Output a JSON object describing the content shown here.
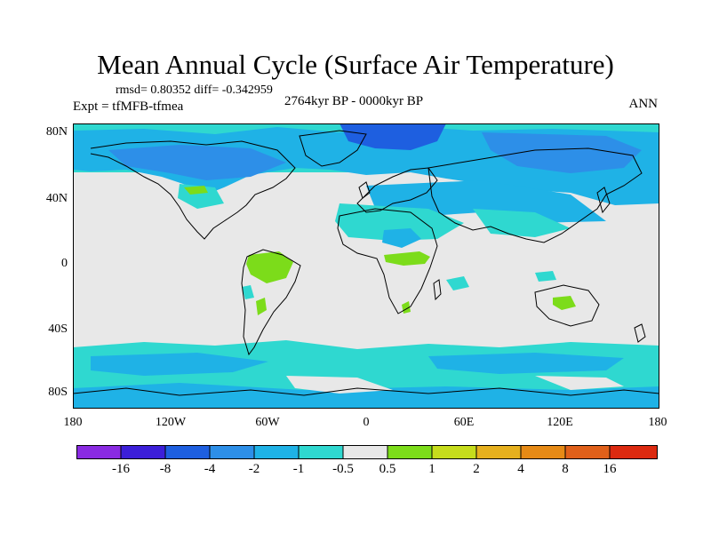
{
  "title": "Mean Annual Cycle (Surface Air Temperature)",
  "stats_line": "rmsd= 0.80352 diff= -0.342959",
  "experiment": "Expt = tfMFB-tfmea",
  "period": "2764kyr BP - 0000kyr BP",
  "season": "ANN",
  "lat_labels": [
    "80N",
    "40N",
    "0",
    "40S",
    "80S"
  ],
  "lon_labels": [
    "180",
    "120W",
    "60W",
    "0",
    "60E",
    "120E",
    "180"
  ],
  "colorbar": {
    "labels": [
      "-16",
      "-8",
      "-4",
      "-2",
      "-1",
      "-0.5",
      "0.5",
      "1",
      "2",
      "4",
      "8",
      "16"
    ],
    "colors": [
      "#8a2be2",
      "#3c1fd9",
      "#1e5fe0",
      "#2d8fe8",
      "#1fb2e6",
      "#2fd8d0",
      "#e8e8e8",
      "#7cdc1a",
      "#c6dc1c",
      "#e6b01e",
      "#e68a16",
      "#e0601a",
      "#dc2a10"
    ]
  },
  "map_colors": {
    "neutral": "#e8e8e8",
    "cool_light": "#2fd8d0",
    "cool_mid": "#1fb2e6",
    "cool_dark": "#2d8fe8",
    "cool_darker": "#1e5fe0",
    "warm_light": "#7cdc1a",
    "coast": "#000000"
  }
}
